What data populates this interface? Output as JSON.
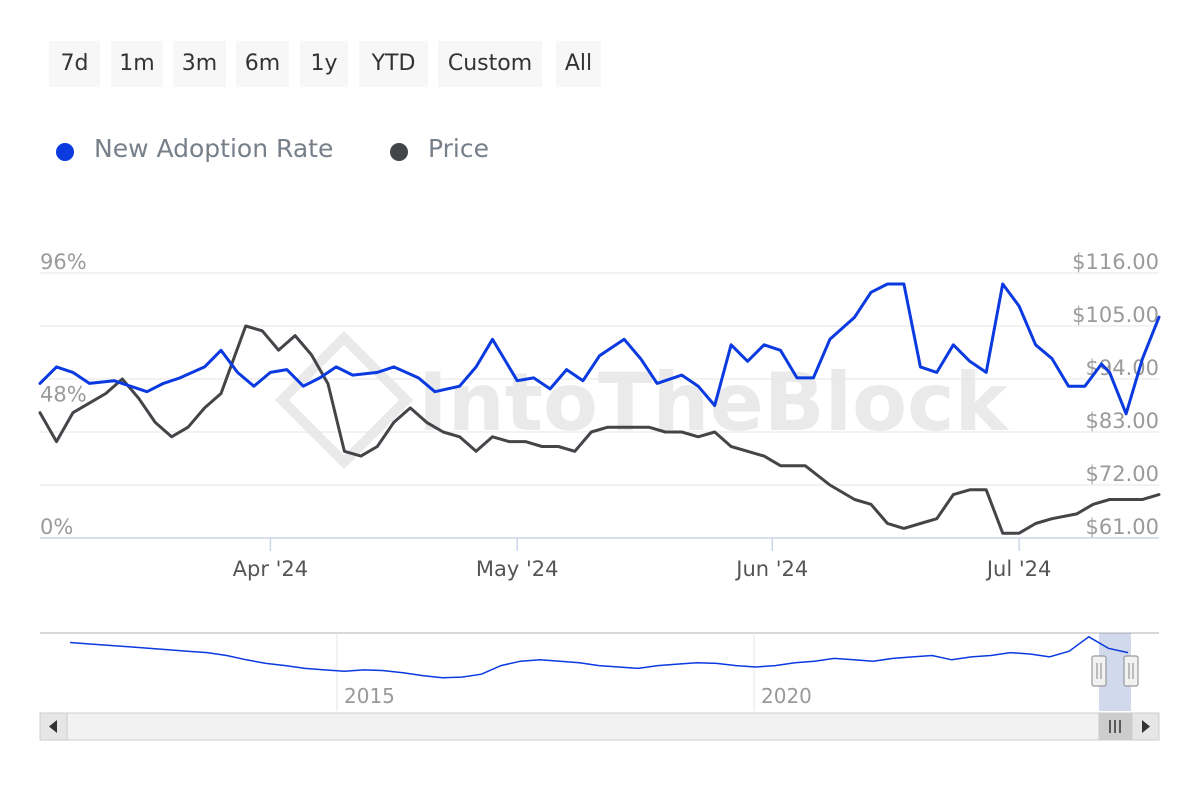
{
  "range_selector": {
    "buttons": [
      "7d",
      "1m",
      "3m",
      "6m",
      "1y",
      "YTD",
      "Custom",
      "All"
    ]
  },
  "legend": {
    "items": [
      {
        "label": "New Adoption Rate",
        "color": "#0a3ae0"
      },
      {
        "label": "Price",
        "color": "#434548"
      }
    ]
  },
  "watermark": "IntoTheBlock",
  "colors": {
    "adoption": "#0a3ae0",
    "price": "#434548",
    "grid": "#e6e6e6",
    "axis_text": "#9a9a9a"
  },
  "chart_data": {
    "type": "line",
    "x_ticks": [
      "Apr '24",
      "May '24",
      "Jun '24",
      "Jul '24"
    ],
    "x_tick_dates": [
      "2024-04-01",
      "2024-05-01",
      "2024-06-01",
      "2024-07-01"
    ],
    "left_axis": {
      "ticks": [
        "0%",
        "48%",
        "96%"
      ],
      "values": [
        0,
        48,
        96
      ],
      "range": [
        0,
        96
      ]
    },
    "right_axis": {
      "ticks": [
        "$61.00",
        "$72.00",
        "$83.00",
        "$94.00",
        "$105.00",
        "$116.00"
      ],
      "values": [
        61,
        72,
        83,
        94,
        105,
        116
      ],
      "range": [
        61,
        116
      ]
    },
    "x_range": [
      "2024-03-04",
      "2024-07-18"
    ],
    "series": [
      {
        "name": "New Adoption Rate",
        "axis": "left",
        "x": [
          "2024-03-04",
          "2024-03-06",
          "2024-03-08",
          "2024-03-10",
          "2024-03-13",
          "2024-03-15",
          "2024-03-17",
          "2024-03-19",
          "2024-03-21",
          "2024-03-24",
          "2024-03-26",
          "2024-03-28",
          "2024-03-30",
          "2024-04-01",
          "2024-04-03",
          "2024-04-05",
          "2024-04-07",
          "2024-04-09",
          "2024-04-11",
          "2024-04-14",
          "2024-04-16",
          "2024-04-19",
          "2024-04-21",
          "2024-04-24",
          "2024-04-26",
          "2024-04-28",
          "2024-04-29",
          "2024-05-01",
          "2024-05-03",
          "2024-05-05",
          "2024-05-07",
          "2024-05-09",
          "2024-05-11",
          "2024-05-14",
          "2024-05-16",
          "2024-05-18",
          "2024-05-21",
          "2024-05-23",
          "2024-05-25",
          "2024-05-27",
          "2024-05-29",
          "2024-05-31",
          "2024-06-02",
          "2024-06-04",
          "2024-06-06",
          "2024-06-08",
          "2024-06-11",
          "2024-06-13",
          "2024-06-15",
          "2024-06-17",
          "2024-06-19",
          "2024-06-21",
          "2024-06-23",
          "2024-06-25",
          "2024-06-27",
          "2024-06-29",
          "2024-07-01",
          "2024-07-03",
          "2024-07-05",
          "2024-07-07",
          "2024-07-09",
          "2024-07-11",
          "2024-07-12",
          "2024-07-14",
          "2024-07-16",
          "2024-07-18"
        ],
        "values": [
          56,
          62,
          60,
          56,
          57,
          55,
          53,
          56,
          58,
          62,
          68,
          60,
          55,
          60,
          61,
          55,
          58,
          62,
          59,
          60,
          62,
          58,
          53,
          55,
          62,
          72,
          67,
          57,
          58,
          54,
          61,
          57,
          66,
          72,
          65,
          56,
          59,
          55,
          48,
          70,
          64,
          70,
          68,
          58,
          58,
          72,
          80,
          89,
          92,
          92,
          62,
          60,
          70,
          64,
          60,
          92,
          84,
          70,
          65,
          55,
          55,
          63,
          60,
          45,
          65,
          80
        ]
      },
      {
        "name": "Price",
        "axis": "right",
        "x": [
          "2024-03-04",
          "2024-03-06",
          "2024-03-08",
          "2024-03-10",
          "2024-03-12",
          "2024-03-14",
          "2024-03-16",
          "2024-03-18",
          "2024-03-20",
          "2024-03-22",
          "2024-03-24",
          "2024-03-26",
          "2024-03-29",
          "2024-03-31",
          "2024-04-02",
          "2024-04-04",
          "2024-04-06",
          "2024-04-08",
          "2024-04-10",
          "2024-04-12",
          "2024-04-14",
          "2024-04-16",
          "2024-04-18",
          "2024-04-20",
          "2024-04-22",
          "2024-04-24",
          "2024-04-26",
          "2024-04-28",
          "2024-04-30",
          "2024-05-02",
          "2024-05-04",
          "2024-05-06",
          "2024-05-08",
          "2024-05-10",
          "2024-05-12",
          "2024-05-15",
          "2024-05-17",
          "2024-05-19",
          "2024-05-21",
          "2024-05-23",
          "2024-05-25",
          "2024-05-27",
          "2024-05-29",
          "2024-05-31",
          "2024-06-02",
          "2024-06-05",
          "2024-06-08",
          "2024-06-11",
          "2024-06-13",
          "2024-06-15",
          "2024-06-17",
          "2024-06-19",
          "2024-06-21",
          "2024-06-23",
          "2024-06-25",
          "2024-06-27",
          "2024-06-29",
          "2024-07-01",
          "2024-07-03",
          "2024-07-05",
          "2024-07-08",
          "2024-07-10",
          "2024-07-12",
          "2024-07-14",
          "2024-07-16",
          "2024-07-18"
        ],
        "values": [
          87,
          81,
          87,
          89,
          91,
          94,
          90,
          85,
          82,
          84,
          88,
          91,
          105,
          104,
          100,
          103,
          99,
          93,
          79,
          78,
          80,
          85,
          88,
          85,
          83,
          82,
          79,
          82,
          81,
          81,
          80,
          80,
          79,
          83,
          84,
          84,
          84,
          83,
          83,
          82,
          83,
          80,
          79,
          78,
          76,
          76,
          72,
          69,
          68,
          64,
          63,
          64,
          65,
          70,
          71,
          71,
          62,
          62,
          64,
          65,
          66,
          68,
          69,
          69,
          69,
          70
        ]
      }
    ],
    "navigator": {
      "x_labels": [
        "2015",
        "2020"
      ],
      "trend": [
        84,
        82,
        80,
        78,
        76,
        74,
        72,
        70,
        66,
        60,
        55,
        52,
        48,
        46,
        44,
        46,
        45,
        42,
        38,
        35,
        36,
        40,
        52,
        58,
        60,
        58,
        56,
        52,
        50,
        48,
        52,
        54,
        56,
        55,
        52,
        50,
        52,
        56,
        58,
        62,
        60,
        58,
        62,
        64,
        66,
        60,
        64,
        66,
        70,
        68,
        64,
        72,
        92,
        76,
        70
      ]
    }
  }
}
